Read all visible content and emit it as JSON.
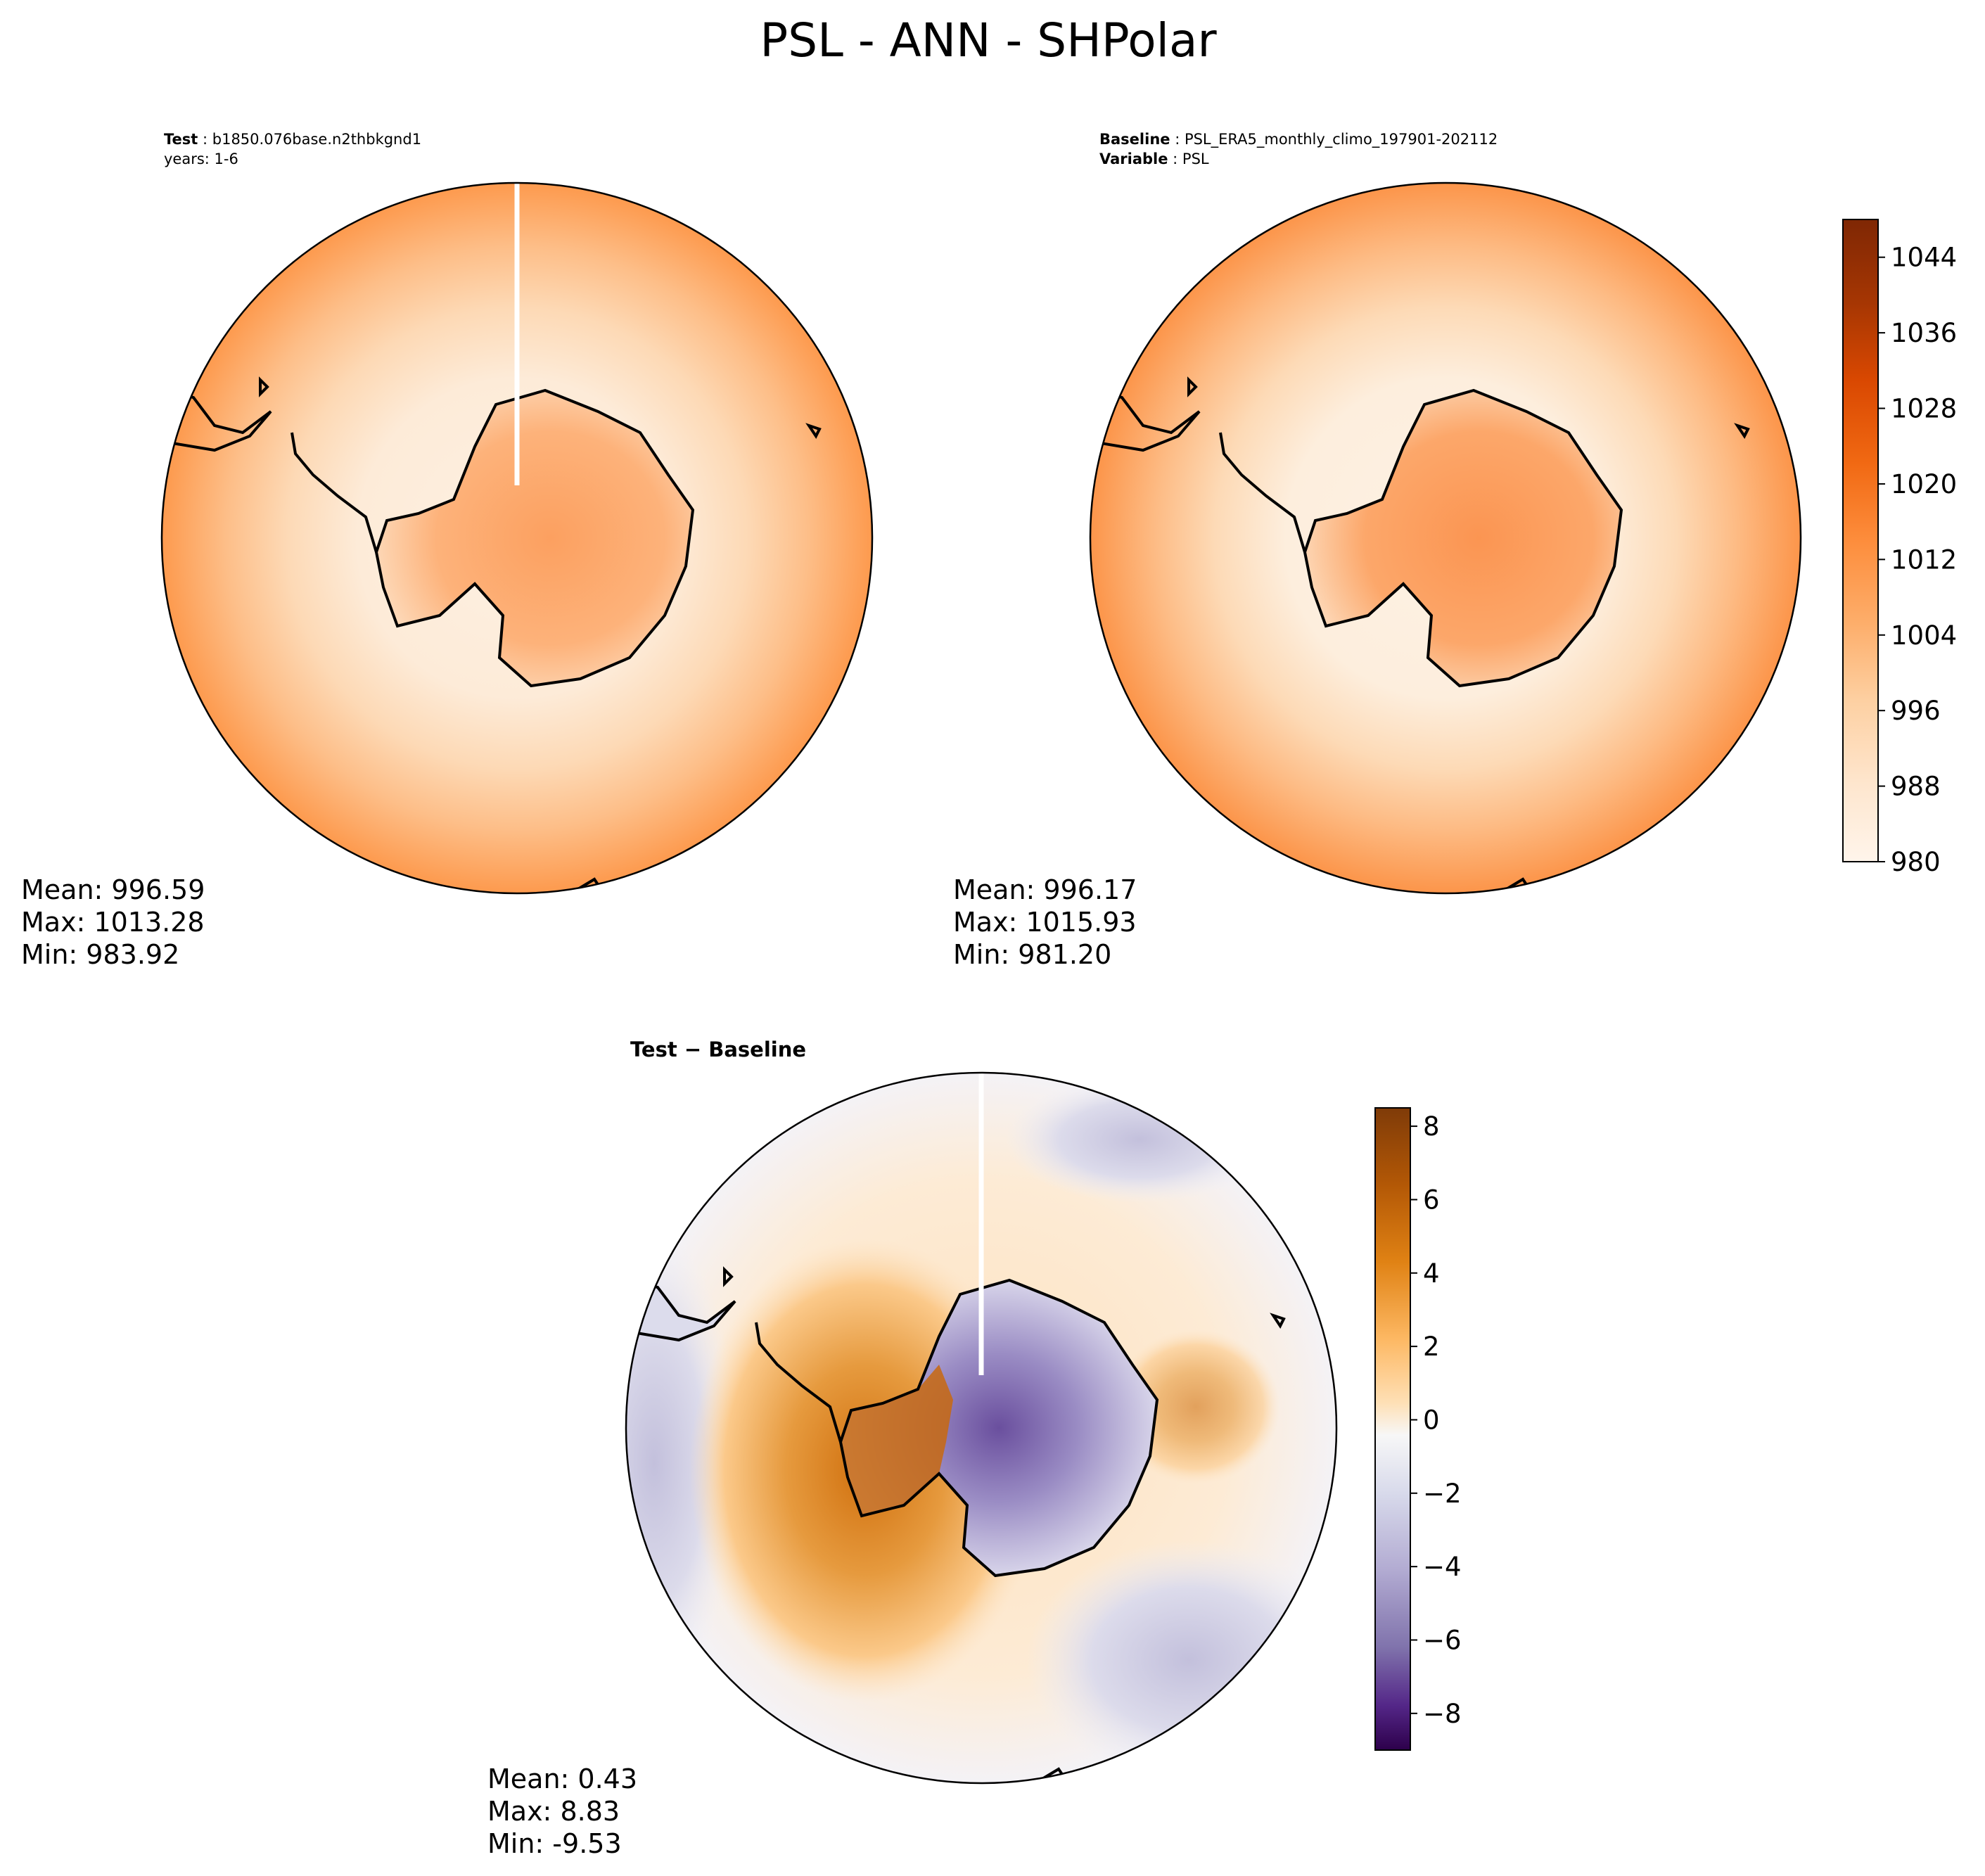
{
  "figure": {
    "title": "PSL - ANN - SHPolar"
  },
  "panels": {
    "test": {
      "label_bold": "Test",
      "label_rest": " : b1850.076base.n2thbkgnd1",
      "line2": "years: 1-6",
      "stats": [
        "Mean: 996.59",
        "Max: 1013.28",
        "Min: 983.92"
      ]
    },
    "baseline": {
      "label_bold": "Baseline",
      "label_rest": " : PSL_ERA5_monthly_climo_197901-202112",
      "line2_bold": "Variable",
      "line2_rest": " : PSL",
      "stats": [
        "Mean: 996.17",
        "Max: 1015.93",
        "Min: 981.20"
      ]
    },
    "diff": {
      "title_a": "Test",
      "title_op": " − ",
      "title_b": "Baseline",
      "stats": [
        "Mean:  0.43",
        "Max:  8.83",
        "Min: -9.53"
      ]
    }
  },
  "colorbars": {
    "absolute": {
      "ticks": [
        "980",
        "988",
        "996",
        "1004",
        "1012",
        "1020",
        "1028",
        "1036",
        "1044"
      ],
      "range": [
        980,
        1048
      ],
      "colors": [
        "#fff5eb",
        "#fee6ce",
        "#fdd0a2",
        "#fdae6b",
        "#fd8d3c",
        "#f16913",
        "#d94801",
        "#a63603",
        "#7f2704"
      ]
    },
    "difference": {
      "ticks": [
        "8",
        "6",
        "4",
        "2",
        "0",
        "−2",
        "−4",
        "−6",
        "−8"
      ],
      "range": [
        -9,
        8.5
      ],
      "colors": [
        "#7f3b08",
        "#b35806",
        "#e08214",
        "#fdb863",
        "#fee0b6",
        "#f7f7f7",
        "#d8daeb",
        "#b2abd2",
        "#8073ac",
        "#542788",
        "#2d004b"
      ]
    }
  },
  "colors": {
    "ocean_edge": "#fd9a4e",
    "ocean_mid": "#fdc28e",
    "ocean_center": "#fdebd8",
    "continent_test": "#fdb27a",
    "continent_base": "#fca76a",
    "diff_positive": "#e08214",
    "diff_negative": "#8073ac",
    "coastline": "#000000"
  },
  "chart_data": [
    {
      "type": "heatmap",
      "title": "Test : b1850.076base.n2thbkgnd1 years: 1-6",
      "projection": "South Polar Stereographic",
      "variable": "PSL",
      "colorbar_range": [
        980,
        1048
      ],
      "mean": 996.59,
      "max": 1013.28,
      "min": 983.92
    },
    {
      "type": "heatmap",
      "title": "Baseline : PSL_ERA5_monthly_climo_197901-202112",
      "projection": "South Polar Stereographic",
      "variable": "PSL",
      "colorbar_ticks": [
        980,
        988,
        996,
        1004,
        1012,
        1020,
        1028,
        1036,
        1044
      ],
      "colorbar_range": [
        980,
        1048
      ],
      "mean": 996.17,
      "max": 1015.93,
      "min": 981.2
    },
    {
      "type": "heatmap",
      "title": "Test − Baseline",
      "projection": "South Polar Stereographic",
      "colorbar_ticks": [
        8,
        6,
        4,
        2,
        0,
        -2,
        -4,
        -6,
        -8
      ],
      "colorbar_range": [
        -9,
        8.5
      ],
      "mean": 0.43,
      "max": 8.83,
      "min": -9.53
    }
  ]
}
